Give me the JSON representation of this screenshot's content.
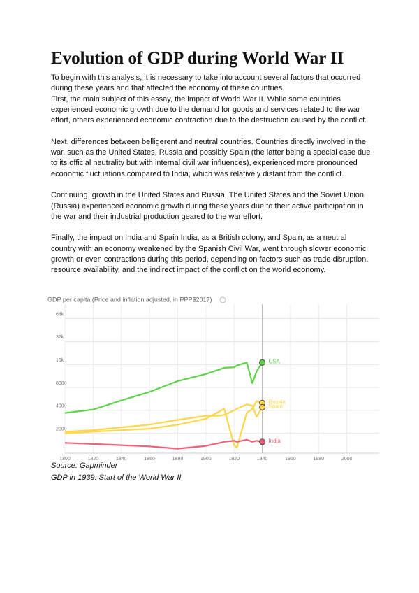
{
  "title": "Evolution of GDP during World War II",
  "paragraphs": [
    "To begin with this analysis, it is necessary to take into account several factors that occurred during these years and that affected the economy of these countries.",
    "First, the main subject of this essay, the impact of World War II. While some countries experienced economic growth due to the demand for goods and services related to the war effort, others experienced economic contraction due to the destruction caused by the conflict.",
    "Next, differences between belligerent and neutral countries. Countries directly involved in the war, such as the United States, Russia and possibly Spain (the latter being a special case due to its official neutrality but with internal civil war influences), experienced more pronounced economic fluctuations compared to India, which was relatively distant from the conflict.",
    "Continuing, growth in the United States and Russia. The United States and the Soviet Union (Russia) experienced economic growth during these years due to their active participation in the war and their industrial production geared to the war effort.",
    "Finally, the impact on India and Spain India, as a British colony, and Spain, as a neutral country with an economy weakened by the Spanish Civil War, went through slower economic growth or even contractions during this period, depending on factors such as trade disruption, resource availability, and the indirect impact of the conflict on the world economy."
  ],
  "chart_data": {
    "type": "line",
    "title": "GDP per capita (Price and inflation adjusted, in PPP$2017)",
    "log_y": true,
    "grid": true,
    "x": [
      1800,
      1820,
      1840,
      1860,
      1880,
      1900,
      1910,
      1913,
      1920,
      1922,
      1929,
      1933,
      1936,
      1940
    ],
    "series": [
      {
        "name": "USA",
        "color": "#5fd34a",
        "values": [
          3700,
          4100,
          5400,
          7000,
          9700,
          12000,
          13800,
          14500,
          14700,
          15500,
          17000,
          9100,
          13000,
          17000
        ]
      },
      {
        "name": "Russia",
        "color": "#ffd64a",
        "values": [
          2000,
          2100,
          2200,
          2300,
          2600,
          3100,
          3900,
          4200,
          1400,
          1300,
          3700,
          4200,
          5300,
          5000
        ]
      },
      {
        "name": "Spain",
        "color": "#ffd64a",
        "values": [
          2100,
          2200,
          2400,
          2600,
          3000,
          3400,
          3400,
          3500,
          4000,
          4200,
          4800,
          4600,
          3300,
          4400
        ]
      },
      {
        "name": "India",
        "color": "#f06078",
        "values": [
          1500,
          1450,
          1400,
          1350,
          1260,
          1370,
          1500,
          1550,
          1600,
          1550,
          1650,
          1550,
          1600,
          1550
        ]
      }
    ],
    "xlim": [
      1800,
      2020
    ],
    "xticks": [
      1800,
      1820,
      1840,
      1860,
      1880,
      1900,
      1920,
      1940,
      1960,
      1980,
      2000
    ],
    "ylim": [
      1100,
      80000
    ],
    "yticks": [
      2000,
      4000,
      8000,
      {
        "value": 16000,
        "label": "16k"
      },
      {
        "value": 32000,
        "label": "32k"
      },
      {
        "value": 64000,
        "label": "64k"
      }
    ]
  },
  "source": "Source: Gapminder",
  "caption": "GDP in 1939: Start of the World War II"
}
